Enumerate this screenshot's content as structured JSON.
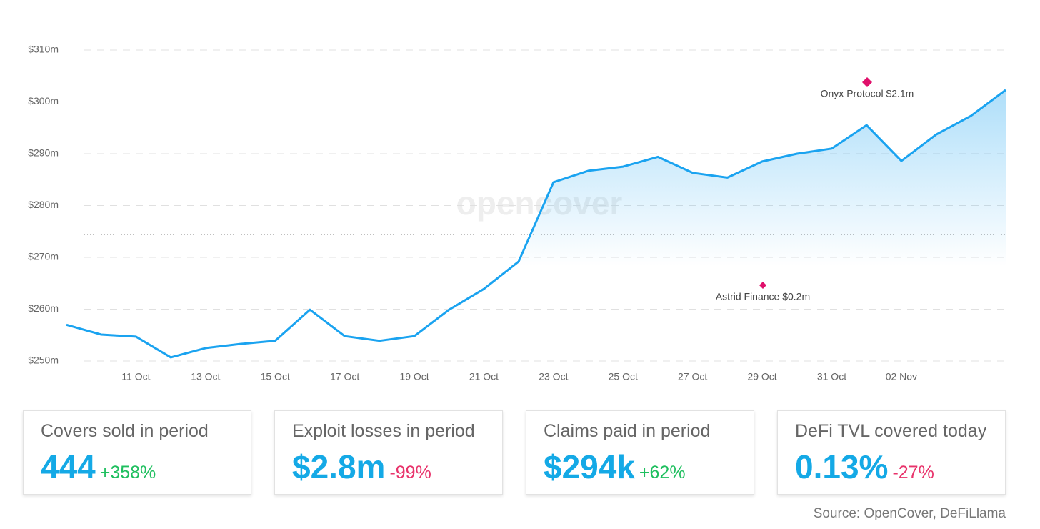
{
  "chart_data": {
    "type": "line",
    "categories": [
      null,
      null,
      "11 Oct",
      null,
      "13 Oct",
      null,
      "15 Oct",
      null,
      "17 Oct",
      null,
      "19 Oct",
      null,
      "21 Oct",
      null,
      "23 Oct",
      null,
      "25 Oct",
      null,
      "27 Oct",
      null,
      "29 Oct",
      null,
      "31 Oct",
      null,
      "02 Nov",
      null,
      null,
      null
    ],
    "values": [
      257.0,
      255.1,
      254.7,
      250.7,
      252.5,
      253.3,
      253.9,
      259.9,
      254.8,
      253.9,
      254.8,
      259.9,
      263.9,
      269.2,
      284.5,
      286.7,
      287.5,
      289.4,
      286.3,
      285.4,
      288.5,
      290.0,
      291.0,
      295.5,
      288.6,
      293.7,
      297.3,
      302.3
    ],
    "color": "#1aa3f0",
    "ylim": [
      250,
      310
    ],
    "yticks": [
      {
        "value": 250,
        "label": "$250m"
      },
      {
        "value": 260,
        "label": "$260m"
      },
      {
        "value": 270,
        "label": "$270m"
      },
      {
        "value": 280,
        "label": "$280m"
      },
      {
        "value": 290,
        "label": "$290m"
      },
      {
        "value": 300,
        "label": "$300m"
      },
      {
        "value": 310,
        "label": "$310m"
      }
    ],
    "grid": true,
    "reference_value": 274.4,
    "watermark": "opencover",
    "annotations": [
      "Onyx Protocol $2.1m",
      "Astrid Finance $0.2m"
    ]
  },
  "cards": [
    {
      "label": "Covers sold in period",
      "value": "444",
      "change": "+358%",
      "change_color": "#1fbf5f"
    },
    {
      "label": "Exploit losses in period",
      "value": "$2.8m",
      "change": "-99%",
      "change_color": "#e8336b"
    },
    {
      "label": "Claims paid in period",
      "value": "$294k",
      "change": "+62%",
      "change_color": "#1fbf5f"
    },
    {
      "label": "DeFi TVL covered today",
      "value": "0.13%",
      "change": "-27%",
      "change_color": "#e8336b"
    }
  ],
  "source": "Source: OpenCover, DeFiLlama"
}
